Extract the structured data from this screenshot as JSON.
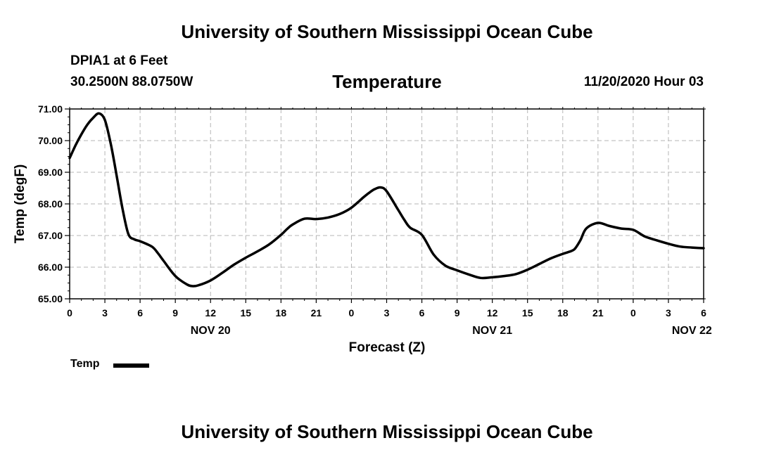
{
  "header": {
    "title": "University of Southern Mississippi Ocean Cube",
    "station": "DPIA1 at 6 Feet",
    "coordinates": "30.2500N 88.0750W",
    "subtitle": "Temperature",
    "datetime": "11/20/2020 Hour 03"
  },
  "footer": {
    "title": "University of Southern Mississippi Ocean Cube"
  },
  "legend": {
    "label": "Temp"
  },
  "chart_data": {
    "type": "line",
    "title": "Temperature",
    "xlabel": "Forecast (Z)",
    "ylabel": "Temp (degF)",
    "x_unit": "hours from 2020-11-20 00Z",
    "xlim": [
      0,
      54
    ],
    "ylim": [
      65.0,
      71.0
    ],
    "grid": true,
    "legend_position": "bottom-left",
    "yticks": [
      65.0,
      66.0,
      67.0,
      68.0,
      69.0,
      70.0,
      71.0
    ],
    "ytick_labels": [
      "65.00",
      "66.00",
      "67.00",
      "68.00",
      "69.00",
      "70.00",
      "71.00"
    ],
    "xticks": [
      0,
      3,
      6,
      9,
      12,
      15,
      18,
      21,
      24,
      27,
      30,
      33,
      36,
      39,
      42,
      45,
      48,
      51,
      54
    ],
    "xtick_labels": [
      "0",
      "3",
      "6",
      "9",
      "12",
      "15",
      "18",
      "21",
      "0",
      "3",
      "6",
      "9",
      "12",
      "15",
      "18",
      "21",
      "0",
      "3",
      "6"
    ],
    "date_labels": [
      {
        "x": 12,
        "label": "NOV 20"
      },
      {
        "x": 36,
        "label": "NOV 21"
      },
      {
        "x": 53,
        "label": "NOV 22"
      }
    ],
    "series": [
      {
        "name": "Temp",
        "color": "#000000",
        "x": [
          0,
          0.5,
          1,
          1.5,
          2,
          2.5,
          3,
          3.5,
          4,
          4.5,
          5,
          5.5,
          6,
          7,
          7.5,
          8,
          9,
          10,
          10.5,
          11,
          12,
          13,
          14,
          15,
          16,
          17,
          18,
          18.5,
          19,
          20,
          21,
          22,
          23,
          24,
          25,
          25.5,
          26,
          26.5,
          27,
          28,
          28.5,
          29,
          30,
          31,
          32,
          33,
          34,
          35,
          36,
          37,
          38,
          39,
          40,
          41,
          42,
          42.5,
          43,
          43.5,
          44,
          45,
          46,
          47,
          48,
          49,
          50,
          51,
          52,
          53,
          54
        ],
        "y": [
          69.45,
          69.85,
          70.2,
          70.5,
          70.72,
          70.86,
          70.65,
          69.9,
          68.9,
          67.85,
          67.05,
          66.88,
          66.82,
          66.65,
          66.45,
          66.2,
          65.72,
          65.45,
          65.4,
          65.43,
          65.58,
          65.82,
          66.08,
          66.3,
          66.5,
          66.72,
          67.02,
          67.2,
          67.35,
          67.53,
          67.52,
          67.57,
          67.68,
          67.88,
          68.2,
          68.35,
          68.47,
          68.52,
          68.4,
          67.8,
          67.5,
          67.25,
          67.02,
          66.4,
          66.05,
          65.9,
          65.77,
          65.66,
          65.68,
          65.72,
          65.78,
          65.92,
          66.1,
          66.28,
          66.42,
          66.48,
          66.57,
          66.85,
          67.22,
          67.4,
          67.3,
          67.22,
          67.18,
          66.97,
          66.85,
          66.74,
          66.65,
          66.62,
          66.6
        ]
      }
    ]
  }
}
